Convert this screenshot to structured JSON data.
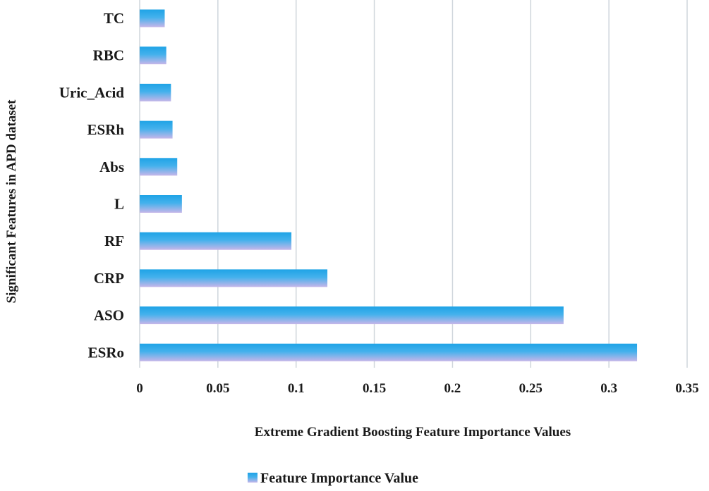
{
  "chart_data": {
    "type": "bar",
    "orientation": "horizontal",
    "categories": [
      "TC",
      "RBC",
      "Uric_Acid",
      "ESRh",
      "Abs",
      "L",
      "RF",
      "CRP",
      "ASO",
      "ESRo"
    ],
    "series": [
      {
        "name": "Feature Importance Value",
        "values": [
          0.016,
          0.017,
          0.02,
          0.021,
          0.024,
          0.027,
          0.097,
          0.12,
          0.271,
          0.318
        ]
      }
    ],
    "xlabel": "Extreme Gradient Boosting Feature Importance Values",
    "ylabel": "Significant Features in APD dataset",
    "xlim": [
      0,
      0.35
    ],
    "xticks": [
      "0",
      "0.05",
      "0.1",
      "0.15",
      "0.2",
      "0.25",
      "0.3",
      "0.35"
    ],
    "grid": "vertical",
    "legend_position": "bottom",
    "colors": {
      "bar_top": "#1fa3e6",
      "bar_bottom": "#c2b3e8",
      "grid": "#cfd6dc"
    }
  }
}
